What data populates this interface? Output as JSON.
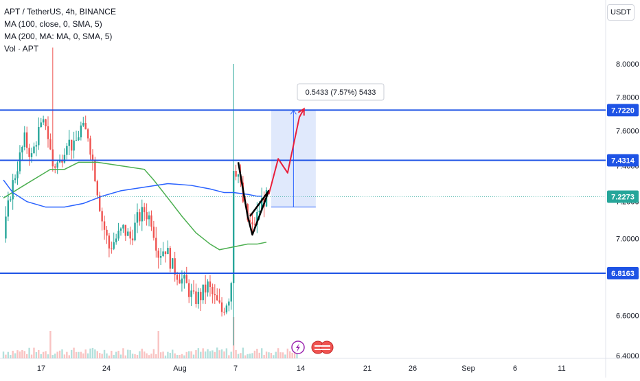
{
  "legend": {
    "symbol": "APT / TetherUS, 4h, BINANCE",
    "ma100": "MA (100, close, 0, SMA, 5)",
    "ma200": "MA (200, MA: MA, 0, SMA, 5)",
    "vol": "Vol · APT"
  },
  "currency": "USDT",
  "measure_label": "0.5433 (7.57%) 5433",
  "colors": {
    "up": "#26a69a",
    "down": "#ef5350",
    "level": "#1e53e5",
    "ma100": "#4caf50",
    "ma200": "#2962ff",
    "arrow": "#e91e3a",
    "range_fill": "#dbe5fb",
    "price_tag": "#26a69a"
  },
  "chart_data": {
    "type": "candlestick",
    "y_axis": {
      "min": 6.36,
      "max": 8.14,
      "scale": "log",
      "ticks": [
        6.4,
        6.6,
        6.8,
        7.0,
        7.2,
        7.4,
        7.6,
        7.8,
        8.0
      ],
      "tick_labels": [
        "6.4000",
        "6.6000",
        "6.8000",
        "7.0000",
        "7.2000",
        "7.4000",
        "7.6000",
        "7.8000",
        "8.0000"
      ]
    },
    "x_axis": {
      "labels": [
        "17",
        "24",
        "Aug",
        "7",
        "14",
        "21",
        "26",
        "Sep",
        "6",
        "11"
      ]
    },
    "levels": [
      {
        "value": 7.722,
        "label": "7.7220"
      },
      {
        "value": 7.4314,
        "label": "7.4314"
      },
      {
        "value": 6.8163,
        "label": "6.8163"
      }
    ],
    "current_price": {
      "value": 7.2273,
      "label": "7.2273"
    },
    "price_path": [
      [
        0,
        7.0
      ],
      [
        3,
        7.25
      ],
      [
        6,
        7.4
      ],
      [
        9,
        7.55
      ],
      [
        12,
        7.45
      ],
      [
        15,
        7.6
      ],
      [
        18,
        7.65
      ],
      [
        21,
        7.4
      ],
      [
        24,
        7.42
      ],
      [
        27,
        7.55
      ],
      [
        30,
        7.5
      ],
      [
        33,
        7.62
      ],
      [
        36,
        7.58
      ],
      [
        39,
        7.35
      ],
      [
        42,
        7.1
      ],
      [
        45,
        6.95
      ],
      [
        48,
        7.0
      ],
      [
        51,
        7.05
      ],
      [
        54,
        7.0
      ],
      [
        57,
        7.1
      ],
      [
        60,
        7.15
      ],
      [
        63,
        7.1
      ],
      [
        66,
        6.92
      ],
      [
        69,
        6.95
      ],
      [
        72,
        6.85
      ],
      [
        75,
        6.8
      ],
      [
        78,
        6.75
      ],
      [
        81,
        6.68
      ],
      [
        84,
        6.7
      ],
      [
        87,
        6.75
      ],
      [
        90,
        6.68
      ],
      [
        93,
        6.62
      ],
      [
        96,
        6.7
      ],
      [
        97,
        6.78
      ],
      [
        98,
        7.4
      ],
      [
        100,
        7.35
      ],
      [
        102,
        7.2
      ],
      [
        104,
        7.1
      ],
      [
        106,
        7.05
      ],
      [
        108,
        7.12
      ],
      [
        110,
        7.2
      ],
      [
        112,
        7.22
      ]
    ],
    "ma100": [
      [
        0,
        7.22
      ],
      [
        10,
        7.3
      ],
      [
        20,
        7.38
      ],
      [
        26,
        7.38
      ],
      [
        32,
        7.42
      ],
      [
        40,
        7.42
      ],
      [
        50,
        7.4
      ],
      [
        60,
        7.38
      ],
      [
        64,
        7.32
      ],
      [
        70,
        7.22
      ],
      [
        76,
        7.12
      ],
      [
        82,
        7.03
      ],
      [
        88,
        6.97
      ],
      [
        92,
        6.94
      ],
      [
        96,
        6.95
      ],
      [
        100,
        6.96
      ],
      [
        104,
        6.97
      ],
      [
        108,
        6.97
      ],
      [
        112,
        6.98
      ]
    ],
    "ma200": [
      [
        0,
        7.32
      ],
      [
        4,
        7.25
      ],
      [
        10,
        7.2
      ],
      [
        18,
        7.17
      ],
      [
        26,
        7.17
      ],
      [
        34,
        7.19
      ],
      [
        42,
        7.23
      ],
      [
        50,
        7.26
      ],
      [
        60,
        7.28
      ],
      [
        70,
        7.3
      ],
      [
        80,
        7.29
      ],
      [
        88,
        7.27
      ],
      [
        94,
        7.25
      ],
      [
        98,
        7.25
      ],
      [
        104,
        7.24
      ],
      [
        108,
        7.23
      ],
      [
        110,
        7.23
      ]
    ],
    "wedge_outline": [
      [
        100,
        7.42
      ],
      [
        104,
        7.12
      ],
      [
        106,
        7.02
      ],
      [
        113,
        7.26
      ],
      [
        105,
        7.12
      ]
    ],
    "projection": [
      [
        113,
        7.24
      ],
      [
        117,
        7.44
      ],
      [
        121,
        7.36
      ],
      [
        126,
        7.68
      ],
      [
        128,
        7.73
      ]
    ],
    "measure_range": {
      "from": 7.17,
      "to": 7.722,
      "x_start": 114,
      "x_end": 133
    },
    "volume_note": "volume bars along bottom"
  }
}
